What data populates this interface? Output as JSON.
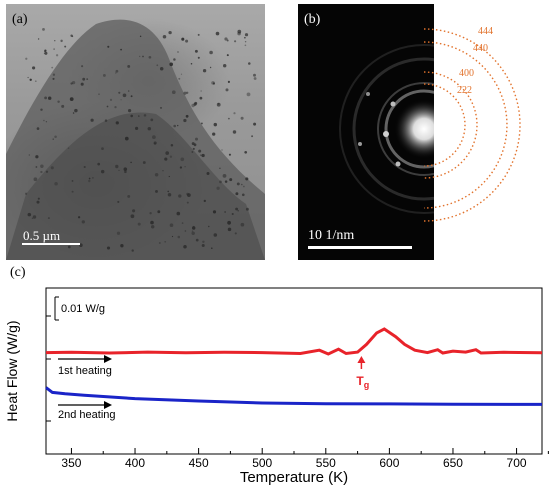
{
  "panel_a": {
    "label": "(a)",
    "scale_bar": "0.5 µm"
  },
  "panel_b": {
    "label": "(b)",
    "scale_bar": "10 1/nm",
    "ring_labels": [
      "444",
      "440",
      "400",
      "222"
    ],
    "ring_color": "#e2732d"
  },
  "panel_c": {
    "label": "(c)",
    "chart_data": {
      "type": "line",
      "xlabel": "Temperature (K)",
      "ylabel": "Heat Flow (W/g)",
      "xlim": [
        330,
        720
      ],
      "x_ticks": [
        350,
        400,
        450,
        500,
        550,
        600,
        650,
        700
      ],
      "y_scale_bar": "0.01 W/g",
      "grid": false,
      "annotations": {
        "tg": "T",
        "tg_sub": "g",
        "tg_x": 578
      },
      "series": [
        {
          "name": "1st heating",
          "color": "#e8232a",
          "points": [
            [
              330,
              0.3
            ],
            [
              350,
              0.35
            ],
            [
              380,
              0.2
            ],
            [
              410,
              0.4
            ],
            [
              440,
              0.25
            ],
            [
              470,
              0.35
            ],
            [
              500,
              0.3
            ],
            [
              530,
              0.1
            ],
            [
              545,
              0.8
            ],
            [
              552,
              0.0
            ],
            [
              560,
              1.0
            ],
            [
              566,
              0.1
            ],
            [
              575,
              0.4
            ],
            [
              582,
              2.0
            ],
            [
              590,
              4.4
            ],
            [
              596,
              5.2
            ],
            [
              605,
              3.6
            ],
            [
              612,
              2.0
            ],
            [
              620,
              0.8
            ],
            [
              630,
              0.3
            ],
            [
              638,
              0.9
            ],
            [
              642,
              0.2
            ],
            [
              650,
              0.6
            ],
            [
              660,
              0.4
            ],
            [
              668,
              0.9
            ],
            [
              672,
              0.2
            ],
            [
              690,
              0.35
            ],
            [
              720,
              0.25
            ]
          ]
        },
        {
          "name": "2nd heating",
          "color": "#1a24c8",
          "points": [
            [
              330,
              -7.0
            ],
            [
              335,
              -8.0
            ],
            [
              345,
              -8.3
            ],
            [
              360,
              -8.6
            ],
            [
              400,
              -9.3
            ],
            [
              450,
              -9.8
            ],
            [
              500,
              -10.2
            ],
            [
              550,
              -10.35
            ],
            [
              600,
              -10.4
            ],
            [
              650,
              -10.45
            ],
            [
              720,
              -10.5
            ]
          ]
        }
      ]
    }
  }
}
